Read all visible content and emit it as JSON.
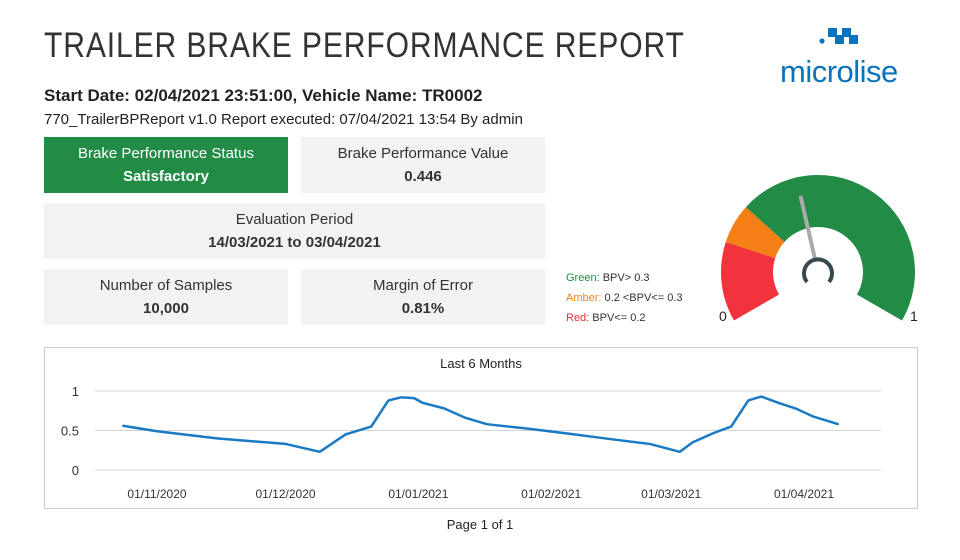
{
  "header": {
    "title": "TRAILER BRAKE PERFORMANCE REPORT",
    "subtitle": "Start Date: 02/04/2021 23:51:00, Vehicle Name: TR0002",
    "executed": "770_TrailerBPReport v1.0 Report executed: 07/04/2021 13:54 By admin",
    "logo_text": "microlise",
    "brand_color": "#0a73be"
  },
  "cards": {
    "status": {
      "label": "Brake Performance Status",
      "value": "Satisfactory",
      "color": "#228b45"
    },
    "bpv": {
      "label": "Brake Performance Value",
      "value": "0.446"
    },
    "period": {
      "label": "Evaluation Period",
      "value": "14/03/2021 to 03/04/2021"
    },
    "samples": {
      "label": "Number of Samples",
      "value": "10,000"
    },
    "margin": {
      "label": "Margin of Error",
      "value": "0.81%"
    }
  },
  "legend": [
    {
      "name": "Green:",
      "rule": " BPV> 0.3",
      "color": "#228b45"
    },
    {
      "name": "Amber:",
      "rule": " 0.2 <BPV<= 0.3",
      "color": "#f07f1a"
    },
    {
      "name": "Red:",
      "rule": " BPV<= 0.2",
      "color": "#e8313a"
    }
  ],
  "gauge": {
    "min_label": "0",
    "max_label": "1",
    "value": 0.446,
    "bands": [
      {
        "from": 0,
        "to": 0.2,
        "color": "#f2323c"
      },
      {
        "from": 0.2,
        "to": 0.3,
        "color": "#f57f17"
      },
      {
        "from": 0.3,
        "to": 1,
        "color": "#228b45"
      }
    ]
  },
  "chart_data": {
    "type": "line",
    "title": "Last 6 Months",
    "ylim": [
      0,
      1
    ],
    "yticks": [
      "0",
      "0.5",
      "1"
    ],
    "xticks": [
      "01/11/2020",
      "01/12/2020",
      "01/01/2021",
      "01/02/2021",
      "01/03/2021",
      "01/04/2021"
    ],
    "grid": true,
    "color": "#1a7bc4",
    "x": [
      "2020-10-24",
      "2020-11-01",
      "2020-11-15",
      "2020-12-01",
      "2020-12-09",
      "2020-12-15",
      "2020-12-21",
      "2020-12-25",
      "2020-12-28",
      "2020-12-31",
      "2021-01-02",
      "2021-01-07",
      "2021-01-12",
      "2021-01-17",
      "2021-01-27",
      "2021-02-05",
      "2021-02-15",
      "2021-02-24",
      "2021-03-03",
      "2021-03-06",
      "2021-03-11",
      "2021-03-15",
      "2021-03-19",
      "2021-03-22",
      "2021-03-26",
      "2021-03-30",
      "2021-04-03",
      "2021-04-09"
    ],
    "y": [
      0.56,
      0.49,
      0.4,
      0.33,
      0.23,
      0.45,
      0.55,
      0.88,
      0.92,
      0.91,
      0.85,
      0.78,
      0.66,
      0.58,
      0.52,
      0.46,
      0.39,
      0.33,
      0.23,
      0.35,
      0.47,
      0.55,
      0.88,
      0.93,
      0.85,
      0.78,
      0.68,
      0.58
    ]
  },
  "footer": {
    "page": "Page 1 of 1"
  }
}
